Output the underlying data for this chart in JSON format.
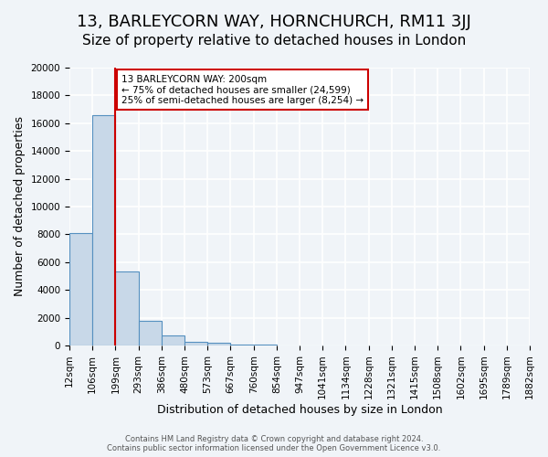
{
  "title": "13, BARLEYCORN WAY, HORNCHURCH, RM11 3JJ",
  "subtitle": "Size of property relative to detached houses in London",
  "xlabel": "Distribution of detached houses by size in London",
  "ylabel": "Number of detached properties",
  "bin_labels": [
    "12sqm",
    "106sqm",
    "199sqm",
    "293sqm",
    "386sqm",
    "480sqm",
    "573sqm",
    "667sqm",
    "760sqm",
    "854sqm",
    "947sqm",
    "1041sqm",
    "1134sqm",
    "1228sqm",
    "1321sqm",
    "1415sqm",
    "1508sqm",
    "1602sqm",
    "1695sqm",
    "1789sqm",
    "1882sqm"
  ],
  "bar_heights": [
    8100,
    16600,
    5300,
    1800,
    750,
    280,
    200,
    80,
    80,
    0,
    0,
    0,
    0,
    0,
    0,
    0,
    0,
    0,
    0,
    0
  ],
  "bar_color": "#c8d8e8",
  "bar_edge_color": "#5590c0",
  "ylim": [
    0,
    20000
  ],
  "yticks": [
    0,
    2000,
    4000,
    6000,
    8000,
    10000,
    12000,
    14000,
    16000,
    18000,
    20000
  ],
  "vline_x": 2,
  "vline_color": "#cc0000",
  "annotation_line1": "13 BARLEYCORN WAY: 200sqm",
  "annotation_line2": "← 75% of detached houses are smaller (24,599)",
  "annotation_line3": "25% of semi-detached houses are larger (8,254) →",
  "annotation_box_color": "#cc0000",
  "footer_line1": "Contains HM Land Registry data © Crown copyright and database right 2024.",
  "footer_line2": "Contains public sector information licensed under the Open Government Licence v3.0.",
  "background_color": "#f0f4f8",
  "grid_color": "#ffffff",
  "title_fontsize": 13,
  "subtitle_fontsize": 11,
  "axis_label_fontsize": 9,
  "tick_fontsize": 7.5
}
